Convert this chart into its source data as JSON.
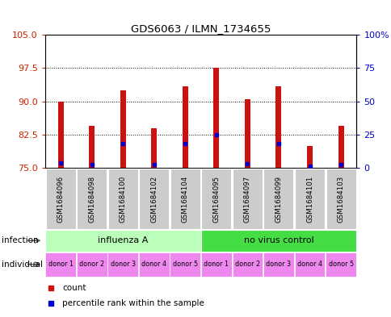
{
  "title": "GDS6063 / ILMN_1734655",
  "samples": [
    "GSM1684096",
    "GSM1684098",
    "GSM1684100",
    "GSM1684102",
    "GSM1684104",
    "GSM1684095",
    "GSM1684097",
    "GSM1684099",
    "GSM1684101",
    "GSM1684103"
  ],
  "bar_tops": [
    90.0,
    84.5,
    92.5,
    84.0,
    93.5,
    97.5,
    90.5,
    93.5,
    80.0,
    84.5
  ],
  "blue_dots": [
    76.2,
    75.8,
    80.5,
    75.8,
    80.5,
    82.5,
    76.0,
    80.5,
    75.5,
    75.8
  ],
  "bar_bottom": 75.0,
  "ylim_left": [
    75,
    105
  ],
  "ylim_right": [
    0,
    100
  ],
  "yticks_left": [
    75,
    82.5,
    90,
    97.5,
    105
  ],
  "yticks_right": [
    0,
    25,
    50,
    75,
    100
  ],
  "bar_color": "#cc1111",
  "dot_color": "#0000cc",
  "infection_groups": [
    {
      "label": "influenza A",
      "start": 0,
      "end": 5,
      "color": "#bbffbb"
    },
    {
      "label": "no virus control",
      "start": 5,
      "end": 10,
      "color": "#44dd44"
    }
  ],
  "donors": [
    "donor 1",
    "donor 2",
    "donor 3",
    "donor 4",
    "donor 5",
    "donor 1",
    "donor 2",
    "donor 3",
    "donor 4",
    "donor 5"
  ],
  "donor_color": "#ee88ee",
  "legend_items": [
    "count",
    "percentile rank within the sample"
  ],
  "bg_color": "#ffffff",
  "left_label_color": "#cc2200",
  "right_label_color": "#0000cc",
  "bar_width": 0.18,
  "sample_bg_color": "#cccccc",
  "infection_label_color": "#000000",
  "grid_dotted_color": "#333333"
}
